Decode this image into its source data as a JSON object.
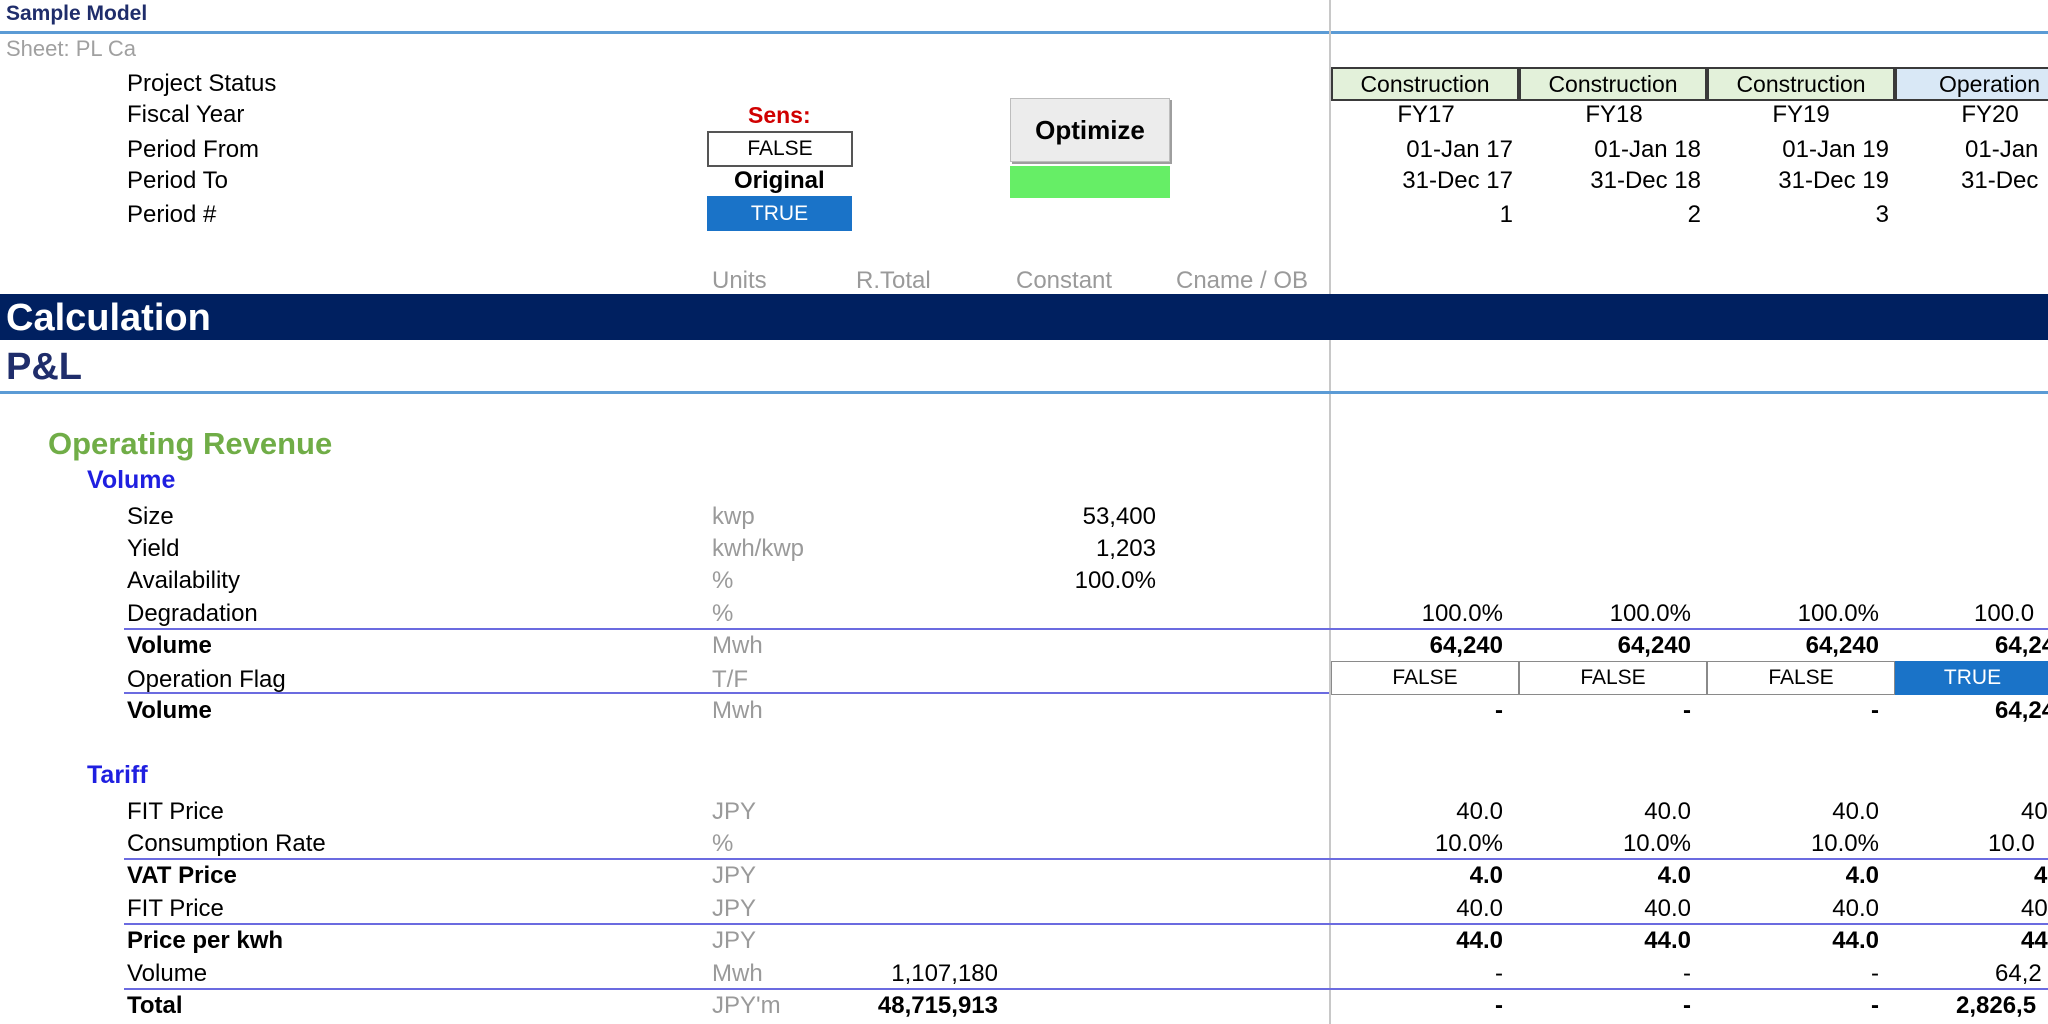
{
  "header": {
    "title": "Sample Model",
    "sheet": "Sheet: PL Ca"
  },
  "labels": {
    "project_status": "Project Status",
    "fiscal_year": "Fiscal Year",
    "period_from": "Period From",
    "period_to": "Period To",
    "period_num": "Period #"
  },
  "controls": {
    "sens_label": "Sens:",
    "sens_value": "FALSE",
    "original_label": "Original",
    "original_value": "TRUE",
    "optimize_label": "Optimize",
    "colors": {
      "sens": "#d00000",
      "true_fill": "#1a73c8",
      "green_bar": "#66ee66"
    }
  },
  "column_headers": {
    "units": "Units",
    "rtotal": "R.Total",
    "constant": "Constant",
    "cname": "Cname / OB"
  },
  "periods": [
    {
      "status": "Construction",
      "fy": "FY17",
      "from": "01-Jan 17",
      "to": "31-Dec 17",
      "num": "1"
    },
    {
      "status": "Construction",
      "fy": "FY18",
      "from": "01-Jan 18",
      "to": "31-Dec 18",
      "num": "2"
    },
    {
      "status": "Construction",
      "fy": "FY19",
      "from": "01-Jan 19",
      "to": "31-Dec 19",
      "num": "3"
    },
    {
      "status": "Operation",
      "fy": "FY20",
      "from": "01-Jan",
      "to": "31-Dec",
      "num": ""
    }
  ],
  "sections": {
    "calculation": "Calculation",
    "pl": "P&L",
    "operating_revenue": "Operating Revenue",
    "volume": "Volume",
    "tariff": "Tariff"
  },
  "rows": {
    "size": {
      "label": "Size",
      "unit": "kwp",
      "constant": "53,400"
    },
    "yield": {
      "label": "Yield",
      "unit": "kwh/kwp",
      "constant": "1,203"
    },
    "availability": {
      "label": "Availability",
      "unit": "%",
      "constant": "100.0%"
    },
    "degradation": {
      "label": "Degradation",
      "unit": "%",
      "values": [
        "100.0%",
        "100.0%",
        "100.0%",
        "100.0"
      ]
    },
    "volume1": {
      "label": "Volume",
      "unit": "Mwh",
      "values": [
        "64,240",
        "64,240",
        "64,240",
        "64,24"
      ]
    },
    "operation_flag": {
      "label": "Operation Flag",
      "unit": "T/F",
      "values": [
        "FALSE",
        "FALSE",
        "FALSE",
        "TRUE"
      ]
    },
    "volume2": {
      "label": "Volume",
      "unit": "Mwh",
      "values": [
        "-",
        "-",
        "-",
        "64,24"
      ]
    },
    "fit_price1": {
      "label": "FIT Price",
      "unit": "JPY",
      "values": [
        "40.0",
        "40.0",
        "40.0",
        "40"
      ]
    },
    "consumption_rate": {
      "label": "Consumption Rate",
      "unit": "%",
      "values": [
        "10.0%",
        "10.0%",
        "10.0%",
        "10.0"
      ]
    },
    "vat_price": {
      "label": "VAT Price",
      "unit": "JPY",
      "values": [
        "4.0",
        "4.0",
        "4.0",
        "4"
      ]
    },
    "fit_price2": {
      "label": "FIT Price",
      "unit": "JPY",
      "values": [
        "40.0",
        "40.0",
        "40.0",
        "40"
      ]
    },
    "price_per_kwh": {
      "label": "Price per kwh",
      "unit": "JPY",
      "values": [
        "44.0",
        "44.0",
        "44.0",
        "44"
      ]
    },
    "volume3": {
      "label": "Volume",
      "unit": "Mwh",
      "rtotal": "1,107,180",
      "values": [
        "-",
        "-",
        "-",
        "64,2"
      ]
    },
    "total": {
      "label": "Total",
      "unit": "JPY'm",
      "rtotal": "48,715,913",
      "values": [
        "-",
        "-",
        "-",
        "2,826,5"
      ]
    }
  }
}
